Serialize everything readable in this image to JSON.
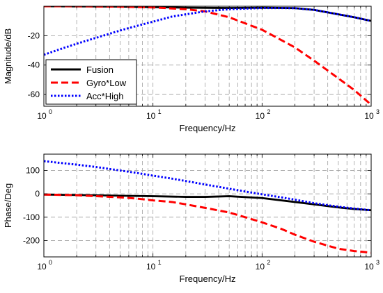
{
  "chart_data": [
    {
      "type": "line",
      "xscale": "log",
      "xlim": [
        1,
        1000
      ],
      "ylim": [
        -68,
        0
      ],
      "xlabel": "Frequency/Hz",
      "ylabel": "Magnitude/dB",
      "grid": true,
      "legend_position": "bottom-left",
      "xtick_labels": {
        "1": "10",
        "10": "10",
        "100": "10",
        "1000": "10"
      },
      "xtick_exponents": [
        "0",
        "1",
        "2",
        "3"
      ],
      "xticks": [
        1,
        10,
        100,
        1000
      ],
      "yticks": [
        -60,
        -40,
        -20
      ],
      "ytick_labels": [
        "-60",
        "-40",
        "-20"
      ],
      "series": [
        {
          "name": "Fusion",
          "color": "#000000",
          "style": "solid",
          "x": [
            1,
            2,
            5,
            10,
            20,
            50,
            100,
            200,
            300,
            500,
            700,
            1000
          ],
          "y": [
            0,
            -0.1,
            -0.2,
            -0.6,
            -1.0,
            -1.2,
            -1.0,
            -1.3,
            -2.5,
            -5.5,
            -7.5,
            -10.0
          ]
        },
        {
          "name": "Gyro*Low",
          "color": "#ff0000",
          "style": "dashed",
          "x": [
            1,
            2,
            5,
            10,
            20,
            30,
            50,
            100,
            200,
            300,
            500,
            700,
            1000
          ],
          "y": [
            0,
            0,
            -0.3,
            -0.8,
            -2.0,
            -3.5,
            -7.5,
            -16.0,
            -28.0,
            -37.0,
            -49.0,
            -57.0,
            -67.0
          ]
        },
        {
          "name": "Acc*High",
          "color": "#0000ff",
          "style": "dotted",
          "x": [
            1,
            1.5,
            2,
            3,
            5,
            7,
            10,
            15,
            20,
            30,
            50,
            100,
            200,
            300,
            500,
            700,
            1000
          ],
          "y": [
            -33.0,
            -28.5,
            -25.5,
            -21.5,
            -16.5,
            -13.5,
            -10.5,
            -7.0,
            -5.5,
            -3.5,
            -2.0,
            -1.2,
            -1.3,
            -2.5,
            -5.5,
            -7.5,
            -10.0
          ]
        }
      ]
    },
    {
      "type": "line",
      "xscale": "log",
      "xlim": [
        1,
        1000
      ],
      "ylim": [
        -270,
        170
      ],
      "xlabel": "Frequency/Hz",
      "ylabel": "Phase/Deg",
      "grid": true,
      "xticks": [
        1,
        10,
        100,
        1000
      ],
      "xtick_exponents": [
        "0",
        "1",
        "2",
        "3"
      ],
      "yticks": [
        -200,
        -100,
        0,
        100
      ],
      "ytick_labels": [
        "-200",
        "-100",
        "0",
        "100"
      ],
      "series": [
        {
          "color": "#000000",
          "style": "solid",
          "x": [
            1,
            2,
            5,
            10,
            20,
            30,
            50,
            100,
            200,
            300,
            500,
            700,
            1000
          ],
          "y": [
            -3,
            -5,
            -8,
            -10,
            -13,
            -13,
            -10,
            -18,
            -35,
            -45,
            -58,
            -65,
            -70
          ]
        },
        {
          "color": "#ff0000",
          "style": "dashed",
          "x": [
            1,
            2,
            3,
            5,
            7,
            10,
            15,
            20,
            30,
            50,
            70,
            100,
            150,
            200,
            300,
            500,
            700,
            1000
          ],
          "y": [
            -3,
            -6,
            -10,
            -15,
            -20,
            -28,
            -35,
            -45,
            -60,
            -80,
            -100,
            -122,
            -150,
            -175,
            -205,
            -235,
            -245,
            -252
          ]
        },
        {
          "color": "#0000ff",
          "style": "dotted",
          "x": [
            1,
            2,
            3,
            5,
            7,
            10,
            15,
            20,
            30,
            50,
            70,
            100,
            150,
            200,
            300,
            500,
            700,
            1000
          ],
          "y": [
            140,
            125,
            115,
            100,
            90,
            78,
            65,
            55,
            40,
            22,
            10,
            -2,
            -15,
            -25,
            -40,
            -55,
            -63,
            -70
          ]
        }
      ]
    }
  ]
}
